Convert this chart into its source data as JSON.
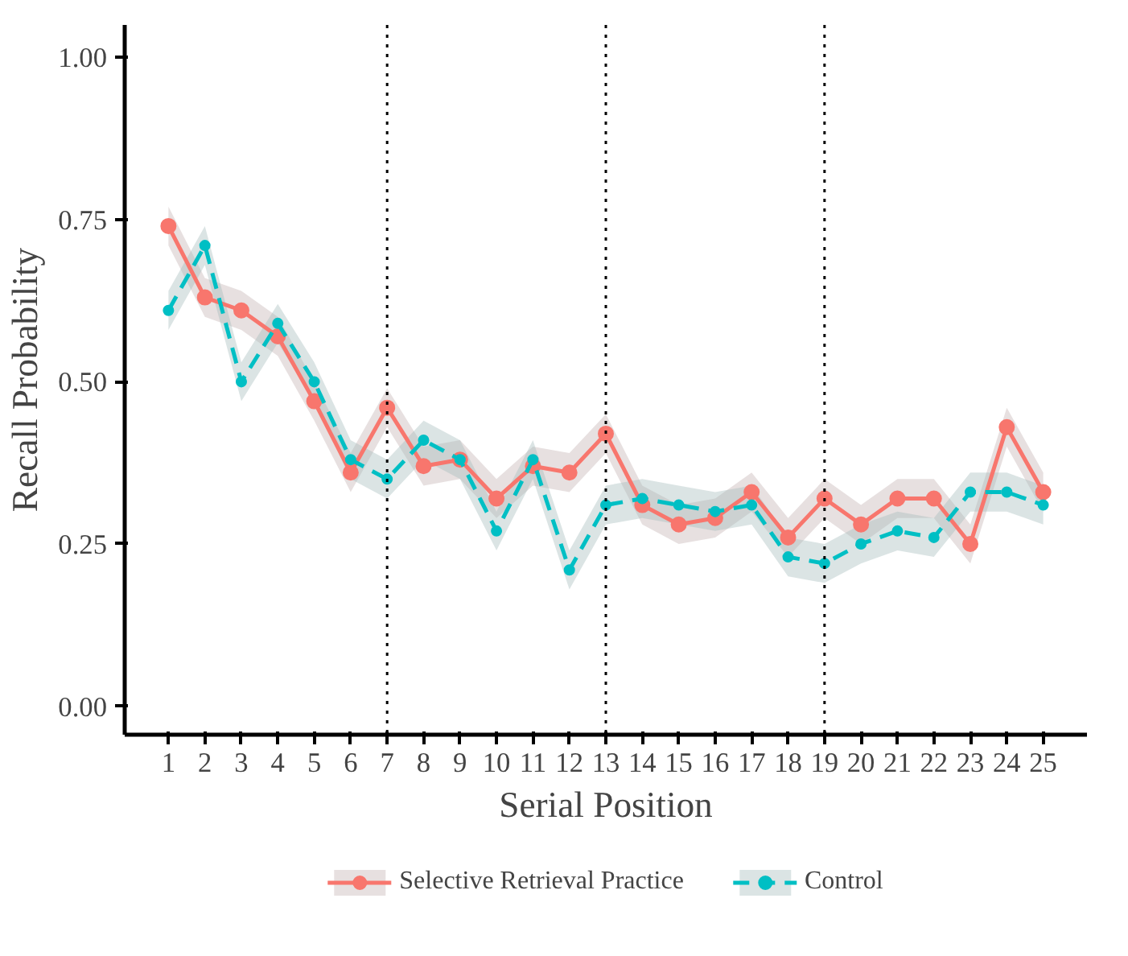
{
  "chart_data": {
    "type": "line",
    "xlabel": "Serial Position",
    "ylabel": "Recall Probability",
    "x": [
      1,
      2,
      3,
      4,
      5,
      6,
      7,
      8,
      9,
      10,
      11,
      12,
      13,
      14,
      15,
      16,
      17,
      18,
      19,
      20,
      21,
      22,
      23,
      24,
      25
    ],
    "series": [
      {
        "name": "Selective Retrieval Practice",
        "color": "#f8766d",
        "line_style": "solid",
        "values": [
          0.74,
          0.63,
          0.61,
          0.57,
          0.47,
          0.36,
          0.46,
          0.37,
          0.38,
          0.32,
          0.37,
          0.36,
          0.42,
          0.31,
          0.28,
          0.29,
          0.33,
          0.26,
          0.32,
          0.28,
          0.32,
          0.32,
          0.25,
          0.43,
          0.33
        ],
        "lower": [
          0.71,
          0.6,
          0.58,
          0.54,
          0.44,
          0.33,
          0.43,
          0.34,
          0.35,
          0.29,
          0.34,
          0.33,
          0.39,
          0.28,
          0.25,
          0.26,
          0.3,
          0.23,
          0.29,
          0.25,
          0.29,
          0.29,
          0.22,
          0.4,
          0.3
        ],
        "upper": [
          0.77,
          0.66,
          0.64,
          0.6,
          0.5,
          0.39,
          0.49,
          0.4,
          0.41,
          0.35,
          0.4,
          0.39,
          0.45,
          0.34,
          0.31,
          0.32,
          0.36,
          0.29,
          0.35,
          0.31,
          0.35,
          0.35,
          0.28,
          0.46,
          0.36
        ]
      },
      {
        "name": "Control",
        "color": "#00bfc4",
        "line_style": "dashed",
        "values": [
          0.61,
          0.71,
          0.5,
          0.59,
          0.5,
          0.38,
          0.35,
          0.41,
          0.38,
          0.27,
          0.38,
          0.21,
          0.31,
          0.32,
          0.31,
          0.3,
          0.31,
          0.23,
          0.22,
          0.25,
          0.27,
          0.26,
          0.33,
          0.33,
          0.31
        ],
        "lower": [
          0.58,
          0.68,
          0.47,
          0.56,
          0.47,
          0.35,
          0.32,
          0.38,
          0.35,
          0.24,
          0.35,
          0.18,
          0.28,
          0.29,
          0.28,
          0.27,
          0.28,
          0.2,
          0.19,
          0.22,
          0.24,
          0.23,
          0.3,
          0.3,
          0.28
        ],
        "upper": [
          0.64,
          0.74,
          0.53,
          0.62,
          0.53,
          0.41,
          0.38,
          0.44,
          0.41,
          0.3,
          0.41,
          0.24,
          0.34,
          0.35,
          0.34,
          0.33,
          0.34,
          0.26,
          0.25,
          0.28,
          0.3,
          0.29,
          0.36,
          0.36,
          0.34
        ]
      }
    ],
    "marker": "circle",
    "xlim": [
      -0.2,
      26.2
    ],
    "xticks": [
      1,
      2,
      3,
      4,
      5,
      6,
      7,
      8,
      9,
      10,
      11,
      12,
      13,
      14,
      15,
      16,
      17,
      18,
      19,
      20,
      21,
      22,
      23,
      24,
      25
    ],
    "ylim": [
      -0.044,
      1.05
    ],
    "yticks": [
      {
        "value": 0,
        "label": "0.00"
      },
      {
        "value": 0.25,
        "label": "0.25"
      },
      {
        "value": 0.5,
        "label": "0.50"
      },
      {
        "value": 0.75,
        "label": "0.75"
      },
      {
        "value": 1,
        "label": "1.00"
      }
    ],
    "grid": false,
    "legend": "bottom",
    "ref_lines": [
      {
        "axis": "x",
        "value": 7,
        "line_style": "dotted",
        "color": "#000000"
      },
      {
        "axis": "x",
        "value": 13,
        "line_style": "dotted",
        "color": "#000000"
      },
      {
        "axis": "x",
        "value": 19,
        "line_style": "dotted",
        "color": "#000000"
      }
    ]
  }
}
